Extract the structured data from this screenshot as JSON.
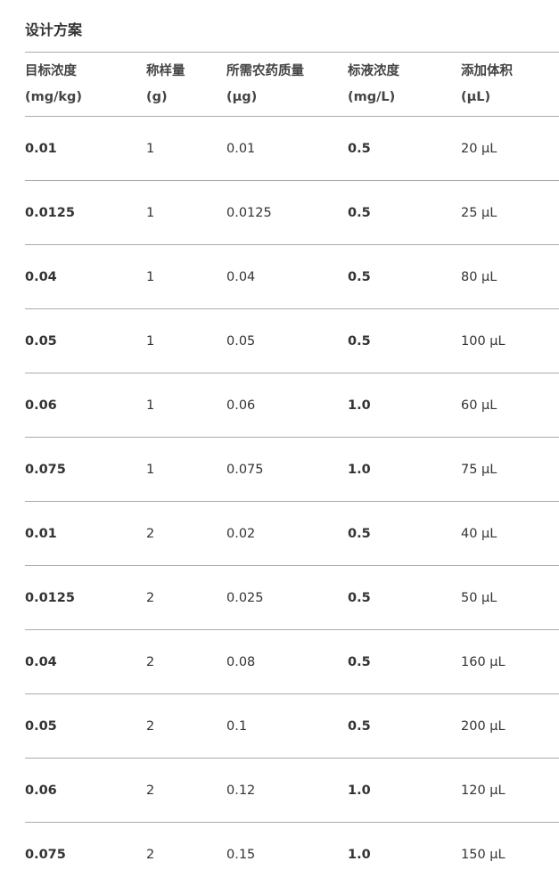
{
  "title": "设计方案",
  "table": {
    "headers": [
      {
        "label": "目标浓度",
        "unit": "(mg/kg)"
      },
      {
        "label": "称样量",
        "unit": "(g)"
      },
      {
        "label": "所需农药质量",
        "unit": "(μg)"
      },
      {
        "label": "标液浓度",
        "unit": "(mg/L)"
      },
      {
        "label": "添加体积",
        "unit": "(μL)"
      }
    ],
    "rows": [
      [
        "0.01",
        "1",
        "0.01",
        "0.5",
        "20 μL"
      ],
      [
        "0.0125",
        "1",
        "0.0125",
        "0.5",
        "25 μL"
      ],
      [
        "0.04",
        "1",
        "0.04",
        "0.5",
        "80 μL"
      ],
      [
        "0.05",
        "1",
        "0.05",
        "0.5",
        "100 μL"
      ],
      [
        "0.06",
        "1",
        "0.06",
        "1.0",
        "60 μL"
      ],
      [
        "0.075",
        "1",
        "0.075",
        "1.0",
        "75 μL"
      ],
      [
        "0.01",
        "2",
        "0.02",
        "0.5",
        "40 μL"
      ],
      [
        "0.0125",
        "2",
        "0.025",
        "0.5",
        "50 μL"
      ],
      [
        "0.04",
        "2",
        "0.08",
        "0.5",
        "160 μL"
      ],
      [
        "0.05",
        "2",
        "0.1",
        "0.5",
        "200 μL"
      ],
      [
        "0.06",
        "2",
        "0.12",
        "1.0",
        "120 μL"
      ],
      [
        "0.075",
        "2",
        "0.15",
        "1.0",
        "150 μL"
      ]
    ]
  }
}
